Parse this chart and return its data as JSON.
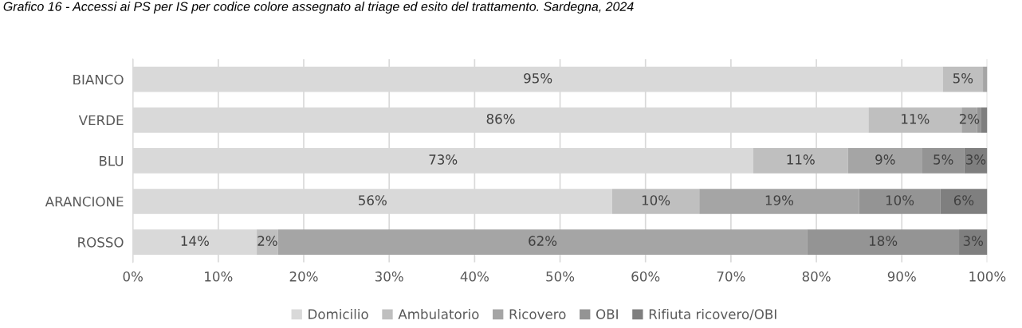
{
  "chart_data": {
    "type": "bar",
    "orientation": "horizontal",
    "stacked": true,
    "title": "Grafico 16 - Accessi ai PS per IS per codice colore assegnato al triage ed esito del trattamento. Sardegna, 2024",
    "categories": [
      "BIANCO",
      "VERDE",
      "BLU",
      "ARANCIONE",
      "ROSSO"
    ],
    "series": [
      {
        "name": "Domicilio",
        "color": "#d9d9d9",
        "values": [
          94.8,
          86.1,
          72.6,
          56.1,
          14.5
        ],
        "value_labels": [
          "95%",
          "86%",
          "73%",
          "56%",
          "14%"
        ]
      },
      {
        "name": "Ambulatorio",
        "color": "#bfbfbf",
        "values": [
          4.7,
          10.9,
          11.1,
          10.2,
          2.5
        ],
        "value_labels": [
          "5%",
          "11%",
          "11%",
          "10%",
          "2%"
        ]
      },
      {
        "name": "Ricovero",
        "color": "#a5a5a5",
        "values": [
          0.5,
          1.8,
          8.7,
          18.7,
          61.9
        ],
        "value_labels": [
          null,
          "2%",
          "9%",
          "19%",
          "62%"
        ]
      },
      {
        "name": "OBI",
        "color": "#949494",
        "values": [
          null,
          0.5,
          4.9,
          9.5,
          17.8
        ],
        "value_labels": [
          null,
          null,
          "5%",
          "10%",
          "18%"
        ]
      },
      {
        "name": "Rifiuta ricovero/OBI",
        "color": "#7f7f7f",
        "values": [
          null,
          0.7,
          2.7,
          5.5,
          3.3
        ],
        "value_labels": [
          null,
          null,
          "3%",
          "6%",
          "3%"
        ]
      }
    ],
    "xlim": [
      0,
      100
    ],
    "xticks": [
      {
        "value": 0,
        "label": "0%"
      },
      {
        "value": 10,
        "label": "10%"
      },
      {
        "value": 20,
        "label": "20%"
      },
      {
        "value": 30,
        "label": "30%"
      },
      {
        "value": 40,
        "label": "40%"
      },
      {
        "value": 50,
        "label": "50%"
      },
      {
        "value": 60,
        "label": "60%"
      },
      {
        "value": 70,
        "label": "70%"
      },
      {
        "value": 80,
        "label": "80%"
      },
      {
        "value": 90,
        "label": "90%"
      },
      {
        "value": 100,
        "label": "100%"
      }
    ],
    "grid": "x",
    "legend": "bottom"
  }
}
